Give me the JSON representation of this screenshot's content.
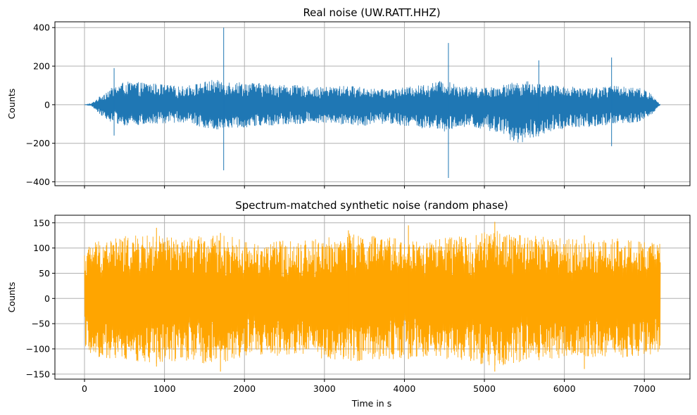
{
  "chart_data": [
    {
      "type": "line",
      "title": "Real noise (UW.RATT.HHZ)",
      "xlabel": "",
      "ylabel": "Counts",
      "xlim": [
        -370,
        7570
      ],
      "ylim": [
        -420,
        430
      ],
      "xticks": [
        0,
        1000,
        2000,
        3000,
        4000,
        5000,
        6000,
        7000
      ],
      "yticks": [
        -400,
        -200,
        0,
        200,
        400
      ],
      "ytick_labels": [
        "−400",
        "−200",
        "0",
        "200",
        "400"
      ],
      "show_xtick_labels": false,
      "grid": true,
      "series": [
        {
          "color": "#1f77b4",
          "x_range": [
            0,
            7200
          ],
          "envelope_x": [
            0,
            80,
            180,
            300,
            500,
            800,
            1000,
            1200,
            1400,
            1600,
            1750,
            1900,
            2100,
            2300,
            2500,
            2700,
            2900,
            3100,
            3300,
            3500,
            3700,
            3900,
            4100,
            4300,
            4450,
            4600,
            4800,
            5000,
            5200,
            5400,
            5500,
            5700,
            5900,
            6100,
            6300,
            6500,
            6700,
            6900,
            7050,
            7150,
            7200
          ],
          "envelope_upper": [
            0,
            5,
            40,
            80,
            120,
            115,
            105,
            95,
            110,
            130,
            125,
            120,
            115,
            110,
            105,
            100,
            90,
            95,
            100,
            90,
            80,
            85,
            95,
            110,
            125,
            115,
            95,
            90,
            100,
            120,
            125,
            110,
            100,
            95,
            90,
            95,
            100,
            95,
            70,
            25,
            0
          ],
          "envelope_lower": [
            0,
            -5,
            -45,
            -85,
            -110,
            -105,
            -100,
            -90,
            -110,
            -130,
            -125,
            -120,
            -115,
            -110,
            -105,
            -100,
            -95,
            -100,
            -105,
            -110,
            -100,
            -105,
            -115,
            -130,
            -145,
            -135,
            -115,
            -130,
            -160,
            -200,
            -195,
            -160,
            -130,
            -120,
            -115,
            -110,
            -105,
            -95,
            -70,
            -25,
            0
          ],
          "spikes": [
            [
              1740,
              400,
              -340
            ],
            [
              4550,
              320,
              -380
            ],
            [
              5680,
              230,
              -150
            ],
            [
              6590,
              245,
              -215
            ],
            [
              370,
              190,
              -160
            ]
          ]
        }
      ]
    },
    {
      "type": "line",
      "title": "Spectrum-matched synthetic noise (random phase)",
      "xlabel": "Time in s",
      "ylabel": "Counts",
      "xlim": [
        -370,
        7570
      ],
      "ylim": [
        -160,
        165
      ],
      "xticks": [
        0,
        1000,
        2000,
        3000,
        4000,
        5000,
        6000,
        7000
      ],
      "xtick_labels": [
        "0",
        "1000",
        "2000",
        "3000",
        "4000",
        "5000",
        "6000",
        "7000"
      ],
      "yticks": [
        -150,
        -100,
        -50,
        0,
        50,
        100,
        150
      ],
      "ytick_labels": [
        "−150",
        "−100",
        "−50",
        "0",
        "50",
        "100",
        "150"
      ],
      "grid": true,
      "series": [
        {
          "color": "#ffa500",
          "x_range": [
            0,
            7200
          ],
          "envelope_x": [
            0,
            100,
            300,
            600,
            900,
            1200,
            1500,
            1800,
            2100,
            2400,
            2700,
            3000,
            3300,
            3600,
            3900,
            4200,
            4500,
            4800,
            5100,
            5400,
            5700,
            6000,
            6300,
            6600,
            6900,
            7200
          ],
          "envelope_upper": [
            95,
            115,
            120,
            125,
            125,
            120,
            125,
            125,
            110,
            115,
            115,
            120,
            130,
            125,
            120,
            115,
            120,
            125,
            135,
            130,
            125,
            120,
            115,
            120,
            115,
            110
          ],
          "envelope_lower": [
            -95,
            -115,
            -120,
            -125,
            -130,
            -125,
            -130,
            -125,
            -110,
            -115,
            -115,
            -120,
            -125,
            -125,
            -120,
            -115,
            -120,
            -125,
            -135,
            -130,
            -125,
            -120,
            -115,
            -125,
            -115,
            -110
          ],
          "spikes": [
            [
              900,
              140,
              -135
            ],
            [
              1700,
              130,
              -145
            ],
            [
              3300,
              135,
              -110
            ],
            [
              4050,
              145,
              -120
            ],
            [
              5130,
              152,
              -145
            ],
            [
              6250,
              125,
              -140
            ]
          ]
        }
      ]
    }
  ]
}
